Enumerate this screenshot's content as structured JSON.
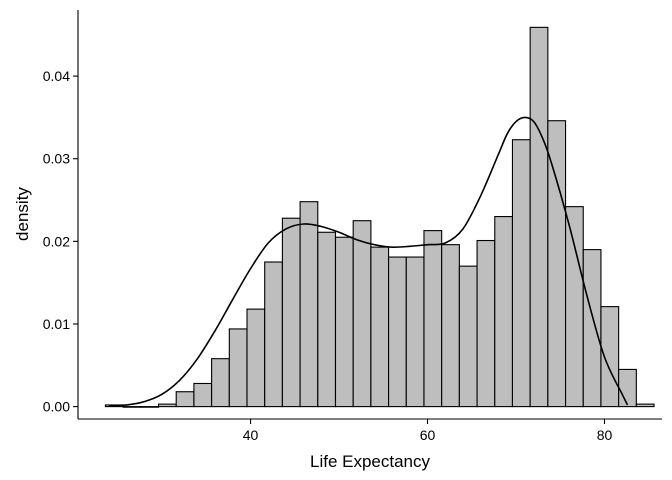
{
  "chart_data": {
    "type": "bar",
    "xlabel": "Life Expectancy",
    "ylabel": "density",
    "xlim": [
      20.5,
      86.5
    ],
    "ylim": [
      -0.0015,
      0.048
    ],
    "x_ticks": [
      40,
      60,
      80
    ],
    "x_tick_labels": [
      "40",
      "60",
      "80"
    ],
    "y_ticks": [
      0,
      0.01,
      0.02,
      0.03,
      0.04
    ],
    "y_tick_labels": [
      "0.00",
      "0.01",
      "0.02",
      "0.03",
      "0.04"
    ],
    "grid": false,
    "histogram": {
      "bin_width": 2,
      "bin_start": 23.6,
      "densities": [
        0.0002,
        0.0,
        0.0,
        0.0003,
        0.0018,
        0.0028,
        0.0058,
        0.0094,
        0.0118,
        0.0175,
        0.0228,
        0.0248,
        0.0211,
        0.0205,
        0.0225,
        0.0193,
        0.0181,
        0.0181,
        0.0213,
        0.0196,
        0.017,
        0.0201,
        0.023,
        0.0323,
        0.0459,
        0.0346,
        0.0242,
        0.019,
        0.0121,
        0.0045,
        0.0003
      ]
    },
    "density_curve": {
      "x": [
        24,
        26,
        28,
        30,
        32,
        34,
        36,
        38,
        40,
        42,
        44,
        46,
        48,
        50,
        52,
        54,
        56,
        58,
        60,
        62,
        64,
        66,
        68,
        69,
        70,
        71,
        72,
        73,
        74,
        76,
        78,
        80,
        82,
        82.6
      ],
      "y": [
        0.0001,
        0.0002,
        0.0006,
        0.0015,
        0.0032,
        0.0058,
        0.0092,
        0.013,
        0.0167,
        0.0198,
        0.0215,
        0.0221,
        0.0218,
        0.0211,
        0.0202,
        0.0196,
        0.0193,
        0.0194,
        0.0196,
        0.0198,
        0.0215,
        0.0255,
        0.0305,
        0.033,
        0.0345,
        0.035,
        0.0345,
        0.0325,
        0.0295,
        0.022,
        0.0135,
        0.006,
        0.0015,
        0.0002
      ]
    }
  }
}
